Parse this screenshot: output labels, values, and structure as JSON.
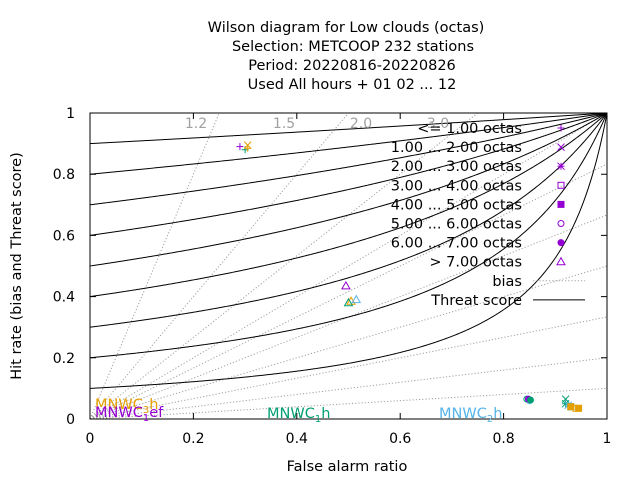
{
  "chart_data": {
    "type": "scatter",
    "title_lines": [
      "Wilson diagram  for Low clouds (octas)",
      "Selection: METCOOP    232 stations",
      "Period: 20220816-20220826",
      "Used  All hours  + 01 02 ... 12"
    ],
    "xlabel": "False alarm ratio",
    "ylabel": "Hit rate (bias and Threat score)",
    "xlim": [
      0,
      1
    ],
    "ylim": [
      0,
      1
    ],
    "xticks": [
      "0",
      "0.2",
      "0.4",
      "0.6",
      "0.8",
      "1"
    ],
    "yticks": [
      "0",
      "0.2",
      "0.4",
      "0.6",
      "0.8",
      "1"
    ],
    "grid": false,
    "legend_position": "top-right",
    "bias_labels": [
      "1.2",
      "1.5",
      "2.0",
      "3.0"
    ],
    "bias_values": [
      0.25,
      0.5,
      0.75,
      1.0,
      1.2,
      1.5,
      2.0,
      3.0,
      5.0,
      10.0
    ],
    "threat_score_values": [
      0.1,
      0.2,
      0.3,
      0.4,
      0.5,
      0.6,
      0.7,
      0.8,
      0.9
    ],
    "legend": {
      "bias": "bias",
      "threat": "Threat score"
    },
    "models": [
      {
        "name": "MNWC",
        "sub": "1",
        "suffix": "h",
        "color": "#009e73"
      },
      {
        "name": "MNWC",
        "sub": "2",
        "suffix": "h",
        "color": "#56b4e9"
      },
      {
        "name": "MNWC",
        "sub": "3",
        "suffix": "h",
        "color": "#e69f00"
      },
      {
        "name": "MNWC",
        "sub": "1",
        "suffix": "ef",
        "color": "#9400d3"
      }
    ],
    "series": [
      {
        "name": "<= 1.00 octas",
        "marker": "plus",
        "points": [
          {
            "model": 0,
            "x": 0.3,
            "y": 0.88
          },
          {
            "model": 3,
            "x": 0.29,
            "y": 0.89
          },
          {
            "model": 2,
            "x": 0.305,
            "y": 0.885
          }
        ]
      },
      {
        "name": "1.00 ... 2.00 octas",
        "marker": "cross",
        "points": [
          {
            "model": 2,
            "x": 0.305,
            "y": 0.895
          },
          {
            "model": 0,
            "x": 0.92,
            "y": 0.065
          }
        ]
      },
      {
        "name": "2.00 ... 3.00 octas",
        "marker": "star",
        "points": [
          {
            "model": 0,
            "x": 0.92,
            "y": 0.05
          },
          {
            "model": 1,
            "x": 0.925,
            "y": 0.045
          }
        ]
      },
      {
        "name": "3.00 ... 4.00 octas",
        "marker": "square",
        "points": [
          {
            "model": 0,
            "x": 0.93,
            "y": 0.04
          },
          {
            "model": 2,
            "x": 0.94,
            "y": 0.035
          }
        ]
      },
      {
        "name": "4.00 ... 5.00 octas",
        "marker": "fsquare",
        "points": [
          {
            "model": 2,
            "x": 0.93,
            "y": 0.04
          },
          {
            "model": 2,
            "x": 0.945,
            "y": 0.035
          }
        ]
      },
      {
        "name": "5.00 ... 6.00 octas",
        "marker": "circle",
        "points": [
          {
            "model": 0,
            "x": 0.845,
            "y": 0.065
          },
          {
            "model": 1,
            "x": 0.85,
            "y": 0.06
          }
        ]
      },
      {
        "name": "6.00 ... 7.00 octas",
        "marker": "fcircle",
        "points": [
          {
            "model": 3,
            "x": 0.848,
            "y": 0.065
          },
          {
            "model": 0,
            "x": 0.852,
            "y": 0.062
          }
        ]
      },
      {
        "name": "> 7.00 octas",
        "marker": "triangle",
        "points": [
          {
            "model": 3,
            "x": 0.495,
            "y": 0.435
          },
          {
            "model": 2,
            "x": 0.505,
            "y": 0.385
          },
          {
            "model": 1,
            "x": 0.515,
            "y": 0.39
          },
          {
            "model": 0,
            "x": 0.5,
            "y": 0.38
          }
        ]
      }
    ]
  },
  "colors": {
    "axis": "#000000",
    "legend_marker": "#9400d3",
    "bias_line": "#a0a0a0",
    "bias_label": "#a0a0a0"
  }
}
